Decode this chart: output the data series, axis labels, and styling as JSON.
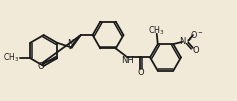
{
  "bg_color": "#f2ead8",
  "bond_color": "#1a1a1a",
  "bond_lw": 1.3,
  "figsize": [
    2.37,
    1.01
  ],
  "dpi": 100,
  "xlim": [
    0,
    10.5
  ],
  "ylim": [
    0,
    4.4
  ]
}
